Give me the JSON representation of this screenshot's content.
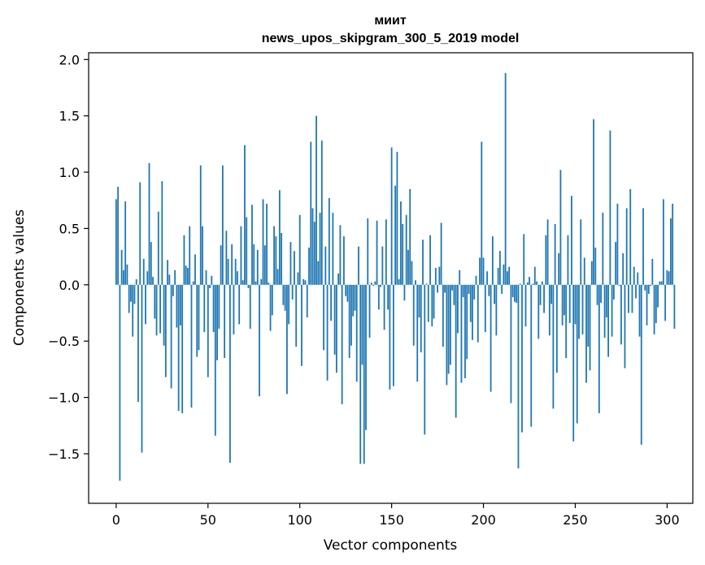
{
  "chart_data": {
    "type": "bar",
    "title_lines": [
      "миит",
      "news_upos_skipgram_300_5_2019 model"
    ],
    "xlabel": "Vector components",
    "ylabel": "Components values",
    "xlim": [
      -15,
      314
    ],
    "ylim": [
      -1.94,
      2.06
    ],
    "xticks": [
      0,
      50,
      100,
      150,
      200,
      250,
      300
    ],
    "yticks": [
      -1.5,
      -1.0,
      -0.5,
      0.0,
      0.5,
      1.0,
      1.5,
      2.0
    ],
    "ytick_labels": [
      "−1.5",
      "−1.0",
      "−0.5",
      "0.0",
      "0.5",
      "1.0",
      "1.5",
      "2.0"
    ],
    "bar_color": "#1f77b4",
    "grid": false,
    "values": [
      0.76,
      0.87,
      -1.74,
      0.31,
      0.13,
      0.74,
      0.18,
      -0.25,
      -0.15,
      -0.46,
      -0.17,
      0.05,
      -1.04,
      0.91,
      -1.49,
      0.23,
      -0.35,
      0.12,
      1.08,
      0.38,
      0.07,
      -0.3,
      -0.45,
      0.65,
      -0.43,
      0.92,
      -0.54,
      -0.82,
      0.22,
      0.09,
      -0.92,
      -0.1,
      0.13,
      -0.38,
      -1.12,
      -0.36,
      -1.14,
      0.44,
      0.17,
      0.15,
      0.52,
      -1.09,
      0.03,
      0.27,
      -0.64,
      -0.58,
      1.06,
      0.52,
      -0.42,
      0.13,
      -0.82,
      -0.03,
      0.08,
      -0.42,
      -1.34,
      -0.67,
      -0.39,
      0.35,
      1.06,
      -0.65,
      0.48,
      0.23,
      -1.58,
      0.36,
      -0.44,
      0.23,
      0.12,
      -0.35,
      0.52,
      0.04,
      1.24,
      0.6,
      -0.03,
      -0.39,
      0.71,
      0.36,
      0.03,
      0.31,
      -0.99,
      0.05,
      0.76,
      0.35,
      0.72,
      0.02,
      -0.41,
      -0.27,
      0.52,
      0.43,
      0.14,
      0.84,
      0.46,
      -0.18,
      -0.23,
      -0.97,
      -0.35,
      0.38,
      -0.13,
      0.3,
      -0.55,
      0.11,
      0.62,
      -0.72,
      0.05,
      0.04,
      -0.29,
      0.33,
      1.27,
      0.68,
      0.56,
      1.5,
      0.21,
      0.64,
      1.28,
      -0.58,
      0.34,
      -0.85,
      0.77,
      -0.32,
      0.64,
      -0.62,
      -0.78,
      0.1,
      0.53,
      -1.06,
      0.43,
      -0.1,
      -0.15,
      -0.65,
      -0.54,
      -0.28,
      -0.23,
      -0.86,
      0.34,
      -1.59,
      -0.71,
      -1.59,
      -1.29,
      0.59,
      -0.47,
      0.02,
      -0.01,
      0.03,
      0.57,
      -0.22,
      -0.02,
      0.34,
      -0.4,
      0.58,
      -0.22,
      -0.93,
      1.22,
      -0.9,
      0.88,
      1.18,
      0.05,
      0.74,
      0.54,
      -0.14,
      0.62,
      0.31,
      0.85,
      0.21,
      -0.54,
      0.04,
      -0.86,
      -0.29,
      -0.6,
      0.4,
      -1.33,
      0.01,
      -0.33,
      0.44,
      -0.37,
      -0.3,
      0.15,
      -0.07,
      0.16,
      0.55,
      -0.55,
      -0.07,
      -0.89,
      -0.79,
      -0.71,
      -0.05,
      -0.18,
      -1.18,
      -0.43,
      0.13,
      -0.87,
      -0.11,
      -0.83,
      -0.66,
      -0.08,
      -0.33,
      -0.49,
      -0.13,
      0.08,
      -0.51,
      0.24,
      1.27,
      0.24,
      -0.42,
      0.12,
      -0.1,
      -0.95,
      0.43,
      -0.17,
      -0.45,
      0.15,
      0.3,
      -0.08,
      0.18,
      1.88,
      0.12,
      0.16,
      -1.05,
      -0.11,
      -0.15,
      -0.16,
      -1.63,
      0.01,
      -1.31,
      0.45,
      -0.37,
      0.02,
      0.07,
      -1.26,
      0.01,
      0.16,
      0.03,
      -0.48,
      -0.18,
      0.03,
      -0.25,
      0.44,
      0.58,
      -0.45,
      -0.17,
      -1.1,
      0.54,
      -0.78,
      0.28,
      1.02,
      -0.36,
      -0.27,
      -0.65,
      0.44,
      -0.34,
      0.79,
      -1.39,
      -0.35,
      -1.23,
      -0.48,
      0.58,
      -0.44,
      0.24,
      -0.87,
      -0.55,
      -0.76,
      0.21,
      1.47,
      0.33,
      -0.18,
      -1.14,
      -0.16,
      0.64,
      -0.47,
      -0.29,
      -0.64,
      1.37,
      -0.46,
      -0.13,
      0.38,
      0.72,
      -0.01,
      -0.53,
      0.28,
      -0.74,
      0.68,
      -0.25,
      0.85,
      -0.25,
      0.16,
      -0.12,
      0.11,
      -0.46,
      -1.42,
      0.68,
      -0.05,
      -0.36,
      -0.08,
      -0.01,
      0.23,
      -0.44,
      -0.34,
      -0.2,
      0.03,
      0.03,
      0.76,
      -0.32,
      0.13,
      0.12,
      0.59,
      0.72,
      -0.39
    ]
  }
}
